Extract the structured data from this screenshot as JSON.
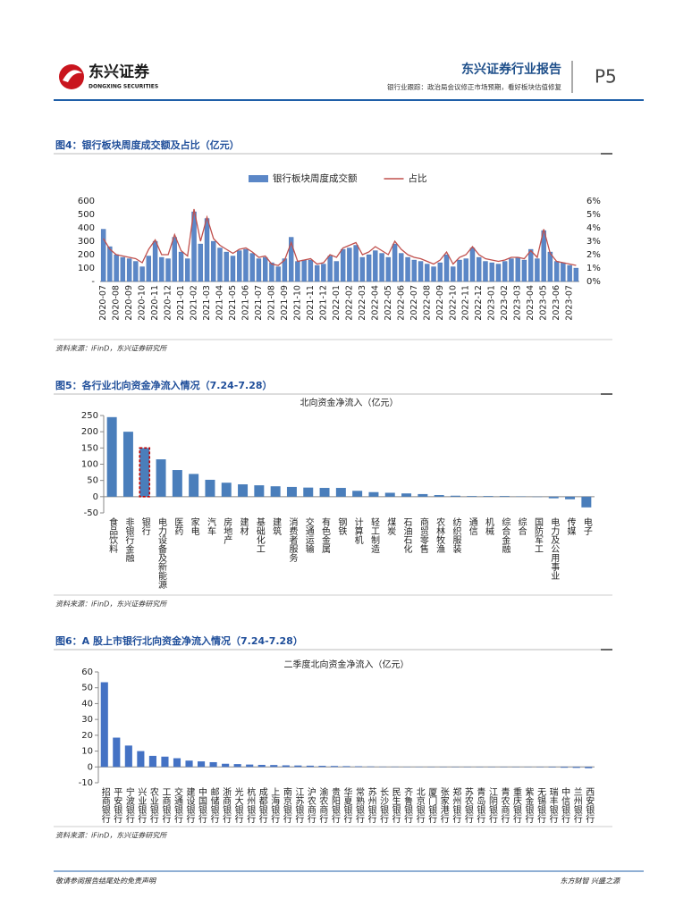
{
  "header": {
    "brand": "东兴证券",
    "brand_en": "DONGXING SECURITIES",
    "report_type": "东兴证券行业报告",
    "subtitle": "银行业跟踪：政治局会议修正市场预期，看好板块估值修复",
    "page": "P5"
  },
  "chart_data": [
    {
      "type": "combo",
      "caption": "图4：银行板块周度成交额及占比（亿元）",
      "source": "资料来源：iFinD，东兴证券研究所",
      "categories": [
        "2020-07",
        null,
        "2020-08",
        null,
        "2020-09",
        null,
        "2020-10",
        null,
        "2020-11",
        null,
        "2020-12",
        null,
        "2021-01",
        null,
        "2021-02",
        null,
        "2021-03",
        null,
        "2021-04",
        null,
        "2021-05",
        null,
        "2021-06",
        null,
        "2021-07",
        null,
        "2021-08",
        null,
        "2021-09",
        null,
        "2021-10",
        null,
        "2021-11",
        null,
        "2021-12",
        null,
        "2022-01",
        null,
        "2022-02",
        null,
        "2022-03",
        null,
        "2022-04",
        null,
        "2022-05",
        null,
        "2022-06",
        null,
        "2022-07",
        null,
        "2022-08",
        null,
        "2022-09",
        null,
        "2022-10",
        null,
        "2022-11",
        null,
        "2022-12",
        null,
        "2023-01",
        null,
        "2023-02",
        null,
        "2023-03",
        null,
        "2023-04",
        null,
        "2023-05",
        null,
        "2023-06",
        null,
        "2023-07",
        null
      ],
      "series": [
        {
          "name": "银行板块周度成交额",
          "type": "bar",
          "color": "#5b87c7",
          "values": [
            390,
            260,
            200,
            180,
            170,
            150,
            110,
            190,
            300,
            180,
            170,
            330,
            220,
            170,
            520,
            280,
            470,
            300,
            250,
            220,
            190,
            230,
            240,
            210,
            170,
            180,
            140,
            110,
            170,
            330,
            150,
            160,
            160,
            120,
            130,
            190,
            150,
            240,
            250,
            270,
            180,
            200,
            230,
            210,
            180,
            280,
            210,
            180,
            160,
            150,
            130,
            110,
            140,
            200,
            110,
            160,
            170,
            250,
            180,
            150,
            140,
            130,
            150,
            170,
            180,
            160,
            240,
            170,
            380,
            220,
            150,
            140,
            120,
            100
          ]
        },
        {
          "name": "占比",
          "type": "line",
          "axis": "y2",
          "color": "#c0504d",
          "values": [
            3.2,
            2.4,
            2.0,
            1.9,
            1.8,
            1.7,
            1.4,
            2.4,
            3.1,
            2.0,
            2.0,
            3.5,
            2.3,
            1.9,
            5.4,
            3.0,
            4.8,
            3.2,
            2.7,
            2.4,
            2.1,
            2.4,
            2.5,
            2.2,
            1.8,
            1.9,
            1.3,
            1.2,
            1.6,
            2.9,
            1.5,
            1.6,
            1.7,
            1.3,
            1.4,
            2.0,
            1.8,
            2.5,
            2.7,
            2.9,
            2.0,
            2.2,
            2.6,
            2.3,
            2.0,
            3.0,
            2.4,
            2.0,
            1.8,
            1.7,
            1.5,
            1.3,
            1.6,
            2.2,
            1.3,
            1.8,
            2.0,
            2.6,
            2.0,
            1.7,
            1.6,
            1.5,
            1.6,
            1.8,
            1.8,
            1.7,
            2.3,
            1.8,
            3.9,
            2.1,
            1.5,
            1.4,
            1.3,
            1.2
          ]
        }
      ],
      "ylim": [
        0,
        600
      ],
      "yticks": [
        {
          "value": 0,
          "label": "-"
        },
        100,
        200,
        300,
        400,
        500,
        600
      ],
      "y2lim": [
        0,
        6
      ],
      "y2ticks": [
        {
          "value": 0,
          "label": "0%"
        },
        {
          "value": 1,
          "label": "1%"
        },
        {
          "value": 2,
          "label": "2%"
        },
        {
          "value": 3,
          "label": "3%"
        },
        {
          "value": 4,
          "label": "4%"
        },
        {
          "value": 5,
          "label": "5%"
        },
        {
          "value": 6,
          "label": "6%"
        }
      ],
      "legend": "top"
    },
    {
      "type": "bar",
      "caption": "图5：各行业北向资金净流入情况（7.24-7.28）",
      "source": "资料来源：iFinD，东兴证券研究所",
      "title": "北向资金净流入（亿元）",
      "categories": [
        "食品饮料",
        "非银行金融",
        "银行",
        "电力设备及新能源",
        "医药",
        "家电",
        "汽车",
        "房地产",
        "建材",
        "基础化工",
        "建筑",
        "消费者服务",
        "交通运输",
        "有色金属",
        "钢铁",
        "计算机",
        "轻工制造",
        "煤炭",
        "石油石化",
        "商贸零售",
        "农林牧渔",
        "纺织服装",
        "通信",
        "机械",
        "综合金融",
        "综合",
        "国防军工",
        "电力及公用事业",
        "传媒",
        "电子"
      ],
      "values": [
        245,
        200,
        150,
        115,
        82,
        70,
        52,
        43,
        38,
        35,
        32,
        30,
        28,
        27,
        27,
        18,
        14,
        12,
        10,
        8,
        5,
        3,
        2,
        2,
        2,
        1,
        -1,
        -5,
        -8,
        -33
      ],
      "color": "#4a7ebb",
      "highlight": 2,
      "highlight_color": "#c00000",
      "ylim": [
        -50,
        250
      ],
      "yticks": [
        -50,
        0,
        50,
        100,
        150,
        200,
        250
      ]
    },
    {
      "type": "bar",
      "caption": "图6：A 股上市银行北向资金净流入情况（7.24-7.28）",
      "source": "资料来源：iFinD，东兴证券研究所",
      "title": "二季度北向资金净流入（亿元）",
      "categories": [
        "招商银行",
        "平安银行",
        "宁波银行",
        "兴业银行",
        "农业银行",
        "工商银行",
        "交通银行",
        "建设银行",
        "中国银行",
        "邮储银行",
        "浙商银行",
        "光大银行",
        "杭州银行",
        "成都银行",
        "上海银行",
        "南京银行",
        "江苏银行",
        "沪农商行",
        "渝农商行",
        "贵阳银行",
        "华夏银行",
        "常熟银行",
        "苏州银行",
        "长沙银行",
        "民生银行",
        "齐鲁银行",
        "北京银行",
        "厦门银行",
        "张家港行",
        "郑州银行",
        "苏农银行",
        "青岛银行",
        "江阴银行",
        "青农商行",
        "重庆银行",
        "紫金银行",
        "无锡银行",
        "瑞丰银行",
        "中信银行",
        "兰州银行",
        "西安银行"
      ],
      "values": [
        53.5,
        18.5,
        13.5,
        10,
        7,
        6.5,
        5.5,
        4,
        3.5,
        3,
        2,
        1.8,
        1.5,
        1.3,
        1.2,
        1,
        0.9,
        0.8,
        0.7,
        0.6,
        0.5,
        0.4,
        0.3,
        0.2,
        0.2,
        0.1,
        0.1,
        0,
        0,
        0,
        0,
        0,
        0,
        0,
        -0.1,
        -0.1,
        -0.2,
        -0.3,
        -0.5,
        -0.6,
        -0.8
      ],
      "color": "#4472c4",
      "ylim": [
        -10,
        60
      ],
      "yticks": [
        -10,
        0,
        10,
        20,
        30,
        40,
        50,
        60
      ]
    }
  ],
  "footer": {
    "left": "敬请参阅报告结尾处的免责声明",
    "right": "东方财智 兴盛之源"
  }
}
